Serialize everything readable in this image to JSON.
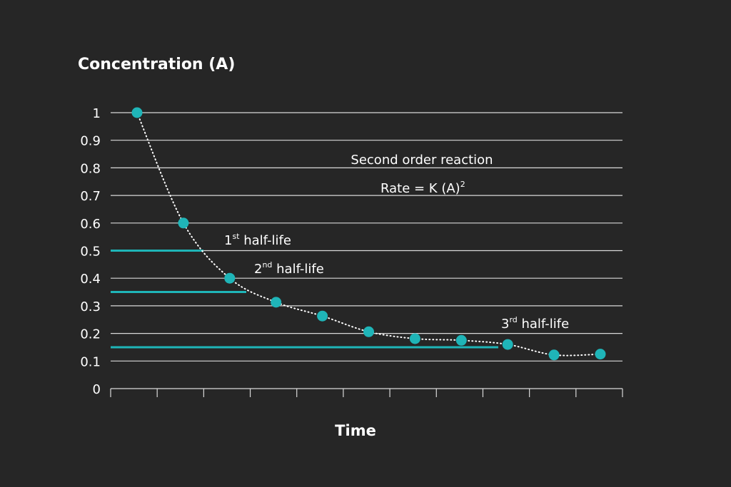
{
  "chart_data": {
    "type": "scatter",
    "ylabel": "Concentration (A)",
    "xlabel": "Time",
    "ylim": [
      0,
      1
    ],
    "yticks": [
      "0",
      "0.1",
      "0.2",
      "0.3",
      "0.4",
      "0.5",
      "0.6",
      "0.7",
      "0.8",
      "0.9",
      "1"
    ],
    "grid": true,
    "x": [
      1,
      2,
      3,
      4,
      5,
      6,
      7,
      8,
      9,
      10,
      11
    ],
    "series": [
      {
        "values": [
          1.0,
          0.6,
          0.4,
          0.313,
          0.263,
          0.206,
          0.181,
          0.175,
          0.16,
          0.122,
          0.125
        ]
      }
    ],
    "half_life_levels": [
      {
        "label_main": "1",
        "label_sup": "st",
        "label_rest": " half-life",
        "y": 0.5
      },
      {
        "label_main": "2",
        "label_sup": "nd",
        "label_rest": " half-life",
        "y": 0.35
      },
      {
        "label_main": "3",
        "label_sup": "rd",
        "label_rest": " half-life",
        "y": 0.15
      }
    ],
    "annotations": {
      "reaction": "Second order reaction",
      "rate_main": "Rate = K (A)",
      "rate_sup": "2"
    },
    "colors": {
      "background": "#262626",
      "marker": "#1fb5b8",
      "half_life_line": "#1fb5b8",
      "grid": "#d9d9d9",
      "text": "#ffffff"
    }
  }
}
